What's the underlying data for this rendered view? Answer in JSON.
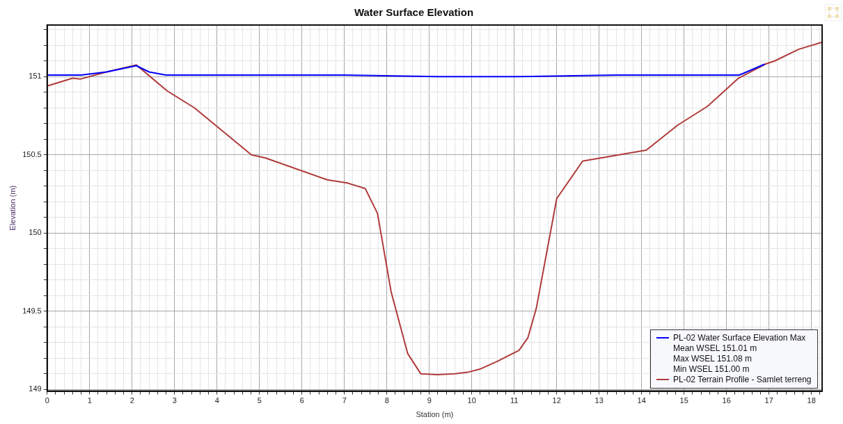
{
  "chart_data": {
    "type": "line",
    "title": "Water Surface Elevation",
    "xlabel": "Station (m)",
    "ylabel": "Elevation (m)",
    "xlim": [
      0,
      18.25
    ],
    "ylim": [
      148.99,
      151.33
    ],
    "xticks": [
      0,
      {
        "value": 0.2,
        "label": null
      },
      {
        "value": 0.4,
        "label": null
      },
      {
        "value": 0.6,
        "label": null
      },
      {
        "value": 0.8,
        "label": null
      },
      1,
      {
        "value": 1.2,
        "label": null
      },
      {
        "value": 1.4,
        "label": null
      },
      {
        "value": 1.6,
        "label": null
      },
      {
        "value": 1.8,
        "label": null
      },
      2,
      {
        "value": 2.2,
        "label": null
      },
      {
        "value": 2.4,
        "label": null
      },
      {
        "value": 2.6,
        "label": null
      },
      {
        "value": 2.8,
        "label": null
      },
      3,
      {
        "value": 3.2,
        "label": null
      },
      {
        "value": 3.4,
        "label": null
      },
      {
        "value": 3.6,
        "label": null
      },
      {
        "value": 3.8,
        "label": null
      },
      4,
      {
        "value": 4.2,
        "label": null
      },
      {
        "value": 4.4,
        "label": null
      },
      {
        "value": 4.6,
        "label": null
      },
      {
        "value": 4.8,
        "label": null
      },
      5,
      {
        "value": 5.2,
        "label": null
      },
      {
        "value": 5.4,
        "label": null
      },
      {
        "value": 5.6,
        "label": null
      },
      {
        "value": 5.8,
        "label": null
      },
      6,
      {
        "value": 6.2,
        "label": null
      },
      {
        "value": 6.4,
        "label": null
      },
      {
        "value": 6.6,
        "label": null
      },
      {
        "value": 6.8,
        "label": null
      },
      7,
      {
        "value": 7.2,
        "label": null
      },
      {
        "value": 7.4,
        "label": null
      },
      {
        "value": 7.6,
        "label": null
      },
      {
        "value": 7.8,
        "label": null
      },
      8,
      {
        "value": 8.2,
        "label": null
      },
      {
        "value": 8.4,
        "label": null
      },
      {
        "value": 8.6,
        "label": null
      },
      {
        "value": 8.8,
        "label": null
      },
      9,
      {
        "value": 9.2,
        "label": null
      },
      {
        "value": 9.4,
        "label": null
      },
      {
        "value": 9.6,
        "label": null
      },
      {
        "value": 9.8,
        "label": null
      },
      10,
      {
        "value": 10.2,
        "label": null
      },
      {
        "value": 10.4,
        "label": null
      },
      {
        "value": 10.6,
        "label": null
      },
      {
        "value": 10.8,
        "label": null
      },
      11,
      {
        "value": 11.2,
        "label": null
      },
      {
        "value": 11.4,
        "label": null
      },
      {
        "value": 11.6,
        "label": null
      },
      {
        "value": 11.8,
        "label": null
      },
      12,
      {
        "value": 12.2,
        "label": null
      },
      {
        "value": 12.4,
        "label": null
      },
      {
        "value": 12.6,
        "label": null
      },
      {
        "value": 12.8,
        "label": null
      },
      13,
      {
        "value": 13.2,
        "label": null
      },
      {
        "value": 13.4,
        "label": null
      },
      {
        "value": 13.6,
        "label": null
      },
      {
        "value": 13.8,
        "label": null
      },
      14,
      {
        "value": 14.2,
        "label": null
      },
      {
        "value": 14.4,
        "label": null
      },
      {
        "value": 14.6,
        "label": null
      },
      {
        "value": 14.8,
        "label": null
      },
      15,
      {
        "value": 15.2,
        "label": null
      },
      {
        "value": 15.4,
        "label": null
      },
      {
        "value": 15.6,
        "label": null
      },
      {
        "value": 15.8,
        "label": null
      },
      16,
      {
        "value": 16.2,
        "label": null
      },
      {
        "value": 16.4,
        "label": null
      },
      {
        "value": 16.6,
        "label": null
      },
      {
        "value": 16.8,
        "label": null
      },
      17,
      {
        "value": 17.2,
        "label": null
      },
      {
        "value": 17.4,
        "label": null
      },
      {
        "value": 17.6,
        "label": null
      },
      {
        "value": 17.8,
        "label": null
      },
      18,
      {
        "value": 18.2,
        "label": null
      }
    ],
    "yticks": [
      149,
      {
        "value": 149.1,
        "label": null
      },
      {
        "value": 149.2,
        "label": null
      },
      {
        "value": 149.3,
        "label": null
      },
      {
        "value": 149.4,
        "label": null
      },
      149.5,
      {
        "value": 149.6,
        "label": null
      },
      {
        "value": 149.7,
        "label": null
      },
      {
        "value": 149.8,
        "label": null
      },
      {
        "value": 149.9,
        "label": null
      },
      150,
      {
        "value": 150.1,
        "label": null
      },
      {
        "value": 150.2,
        "label": null
      },
      {
        "value": 150.3,
        "label": null
      },
      {
        "value": 150.4,
        "label": null
      },
      150.5,
      {
        "value": 150.6,
        "label": null
      },
      {
        "value": 150.7,
        "label": null
      },
      {
        "value": 150.8,
        "label": null
      },
      {
        "value": 150.9,
        "label": null
      },
      151,
      {
        "value": 151.1,
        "label": null
      },
      {
        "value": 151.2,
        "label": null
      },
      {
        "value": 151.3,
        "label": null
      }
    ],
    "grid": true,
    "legend": "bottom right",
    "marker": "none",
    "line_style": "solid",
    "annotations": [
      "Mean WSEL 151.01 m",
      "Max WSEL 151.08 m",
      "Min WSEL 151.00 m"
    ],
    "series": [
      {
        "name": "PL-02 Water Surface Elevation Max",
        "color": "#0000ff",
        "x": [
          0,
          0.8,
          1.4,
          2.1,
          2.4,
          2.8,
          5,
          7,
          9.2,
          11,
          13.4,
          16.3,
          16.9
        ],
        "values": [
          151.01,
          151.01,
          151.03,
          151.07,
          151.03,
          151.01,
          151.01,
          151.01,
          151.0,
          151.0,
          151.01,
          151.01,
          151.08
        ]
      },
      {
        "name": "PL-02 Terrain Profile - Samlet terreng",
        "color": "#b03a3a",
        "x": [
          0,
          0.6,
          0.79,
          1.4,
          2.1,
          2.82,
          3.47,
          4.81,
          5.14,
          6.6,
          7.07,
          7.49,
          7.78,
          8.1,
          8.49,
          8.8,
          9.19,
          9.6,
          9.9,
          10.19,
          10.6,
          11.11,
          11.32,
          11.52,
          12.0,
          12.61,
          14.11,
          14.85,
          15.55,
          16.28,
          16.91,
          17.13,
          17.7,
          18.25
        ],
        "values": [
          150.94,
          150.99,
          150.985,
          151.03,
          151.075,
          150.91,
          150.8,
          150.5,
          150.48,
          150.34,
          150.32,
          150.285,
          150.125,
          149.625,
          149.23,
          149.1,
          149.095,
          149.1,
          149.11,
          149.13,
          149.18,
          149.25,
          149.33,
          149.52,
          150.22,
          150.46,
          150.53,
          150.69,
          150.81,
          150.99,
          151.08,
          151.1,
          151.175,
          151.22
        ]
      }
    ]
  }
}
